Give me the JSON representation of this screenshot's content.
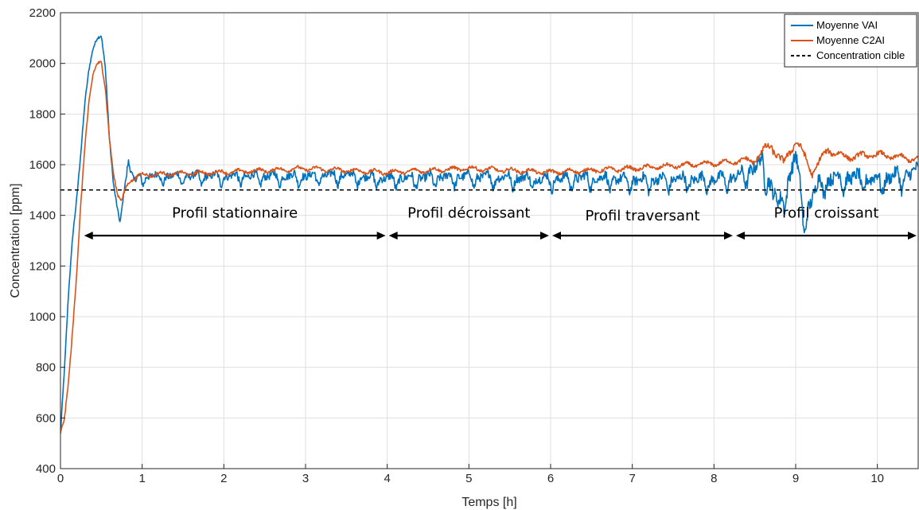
{
  "chart_data": {
    "type": "line",
    "title": "",
    "xlabel": "Temps [h]",
    "ylabel": "Concentration [ppm]",
    "xlim": [
      0,
      10.5
    ],
    "ylim": [
      400,
      2200
    ],
    "xticks": [
      0,
      1,
      2,
      3,
      4,
      5,
      6,
      7,
      8,
      9,
      10
    ],
    "yticks": [
      400,
      600,
      800,
      1000,
      1200,
      1400,
      1600,
      1800,
      2000,
      2200
    ],
    "grid": true,
    "legend_position": "top-right",
    "series": [
      {
        "name": "Moyenne VAI",
        "color": "#0072BD",
        "keypoints": [
          [
            0,
            540
          ],
          [
            0.05,
            800
          ],
          [
            0.1,
            1100
          ],
          [
            0.15,
            1320
          ],
          [
            0.2,
            1470
          ],
          [
            0.25,
            1650
          ],
          [
            0.3,
            1850
          ],
          [
            0.35,
            1980
          ],
          [
            0.4,
            2060
          ],
          [
            0.45,
            2100
          ],
          [
            0.5,
            2110
          ],
          [
            0.55,
            1980
          ],
          [
            0.6,
            1700
          ],
          [
            0.65,
            1520
          ],
          [
            0.7,
            1420
          ],
          [
            0.73,
            1370
          ],
          [
            0.78,
            1500
          ],
          [
            0.83,
            1620
          ],
          [
            0.9,
            1540
          ],
          [
            1.0,
            1560
          ],
          [
            1.5,
            1560
          ],
          [
            2.0,
            1560
          ],
          [
            2.5,
            1560
          ],
          [
            3.0,
            1560
          ],
          [
            3.5,
            1565
          ],
          [
            4.0,
            1550
          ],
          [
            4.5,
            1555
          ],
          [
            5.0,
            1560
          ],
          [
            5.5,
            1555
          ],
          [
            6.0,
            1550
          ],
          [
            6.5,
            1555
          ],
          [
            7.0,
            1545
          ],
          [
            7.5,
            1550
          ],
          [
            8.0,
            1550
          ],
          [
            8.3,
            1560
          ],
          [
            8.6,
            1620
          ],
          [
            8.8,
            1440
          ],
          [
            9.0,
            1650
          ],
          [
            9.1,
            1400
          ],
          [
            9.3,
            1550
          ],
          [
            9.6,
            1560
          ],
          [
            10.0,
            1550
          ],
          [
            10.5,
            1580
          ]
        ],
        "oscillation": [
          [
            0.8,
            30
          ],
          [
            4.0,
            35
          ],
          [
            8.3,
            45
          ],
          [
            8.7,
            70
          ],
          [
            9.6,
            55
          ],
          [
            10.5,
            55
          ]
        ]
      },
      {
        "name": "Moyenne C2AI",
        "color": "#D95319",
        "keypoints": [
          [
            0,
            540
          ],
          [
            0.05,
            600
          ],
          [
            0.1,
            750
          ],
          [
            0.15,
            950
          ],
          [
            0.2,
            1180
          ],
          [
            0.25,
            1450
          ],
          [
            0.3,
            1680
          ],
          [
            0.35,
            1850
          ],
          [
            0.4,
            1960
          ],
          [
            0.45,
            2000
          ],
          [
            0.5,
            2005
          ],
          [
            0.55,
            1900
          ],
          [
            0.6,
            1700
          ],
          [
            0.65,
            1560
          ],
          [
            0.7,
            1480
          ],
          [
            0.75,
            1460
          ],
          [
            0.8,
            1510
          ],
          [
            0.85,
            1540
          ],
          [
            1.0,
            1560
          ],
          [
            2.0,
            1570
          ],
          [
            3.0,
            1585
          ],
          [
            4.0,
            1570
          ],
          [
            5.0,
            1585
          ],
          [
            6.0,
            1570
          ],
          [
            7.0,
            1585
          ],
          [
            8.0,
            1605
          ],
          [
            8.5,
            1620
          ],
          [
            8.7,
            1680
          ],
          [
            8.85,
            1600
          ],
          [
            9.0,
            1700
          ],
          [
            9.2,
            1570
          ],
          [
            9.4,
            1660
          ],
          [
            9.6,
            1630
          ],
          [
            10.0,
            1640
          ],
          [
            10.5,
            1620
          ]
        ],
        "oscillation": [
          [
            0.8,
            12
          ],
          [
            8.3,
            14
          ],
          [
            8.7,
            28
          ],
          [
            9.5,
            20
          ],
          [
            10.5,
            16
          ]
        ]
      },
      {
        "name": "Concentration cible",
        "color": "#000000",
        "dash": true,
        "keypoints": [
          [
            0,
            1500
          ],
          [
            10.5,
            1500
          ]
        ]
      }
    ],
    "annotations": [
      {
        "label": "Profil stationnaire",
        "x_start": 0.27,
        "x_end": 4.0,
        "arrow_y": 1320,
        "text_y": 1400
      },
      {
        "label": "Profil décroissant",
        "x_start": 4.0,
        "x_end": 6.0,
        "arrow_y": 1320,
        "text_y": 1400
      },
      {
        "label": "Profil traversant",
        "x_start": 6.0,
        "x_end": 8.25,
        "arrow_y": 1320,
        "text_y": 1390
      },
      {
        "label": "Profil croissant",
        "x_start": 8.25,
        "x_end": 10.5,
        "arrow_y": 1320,
        "text_y": 1400
      }
    ]
  }
}
